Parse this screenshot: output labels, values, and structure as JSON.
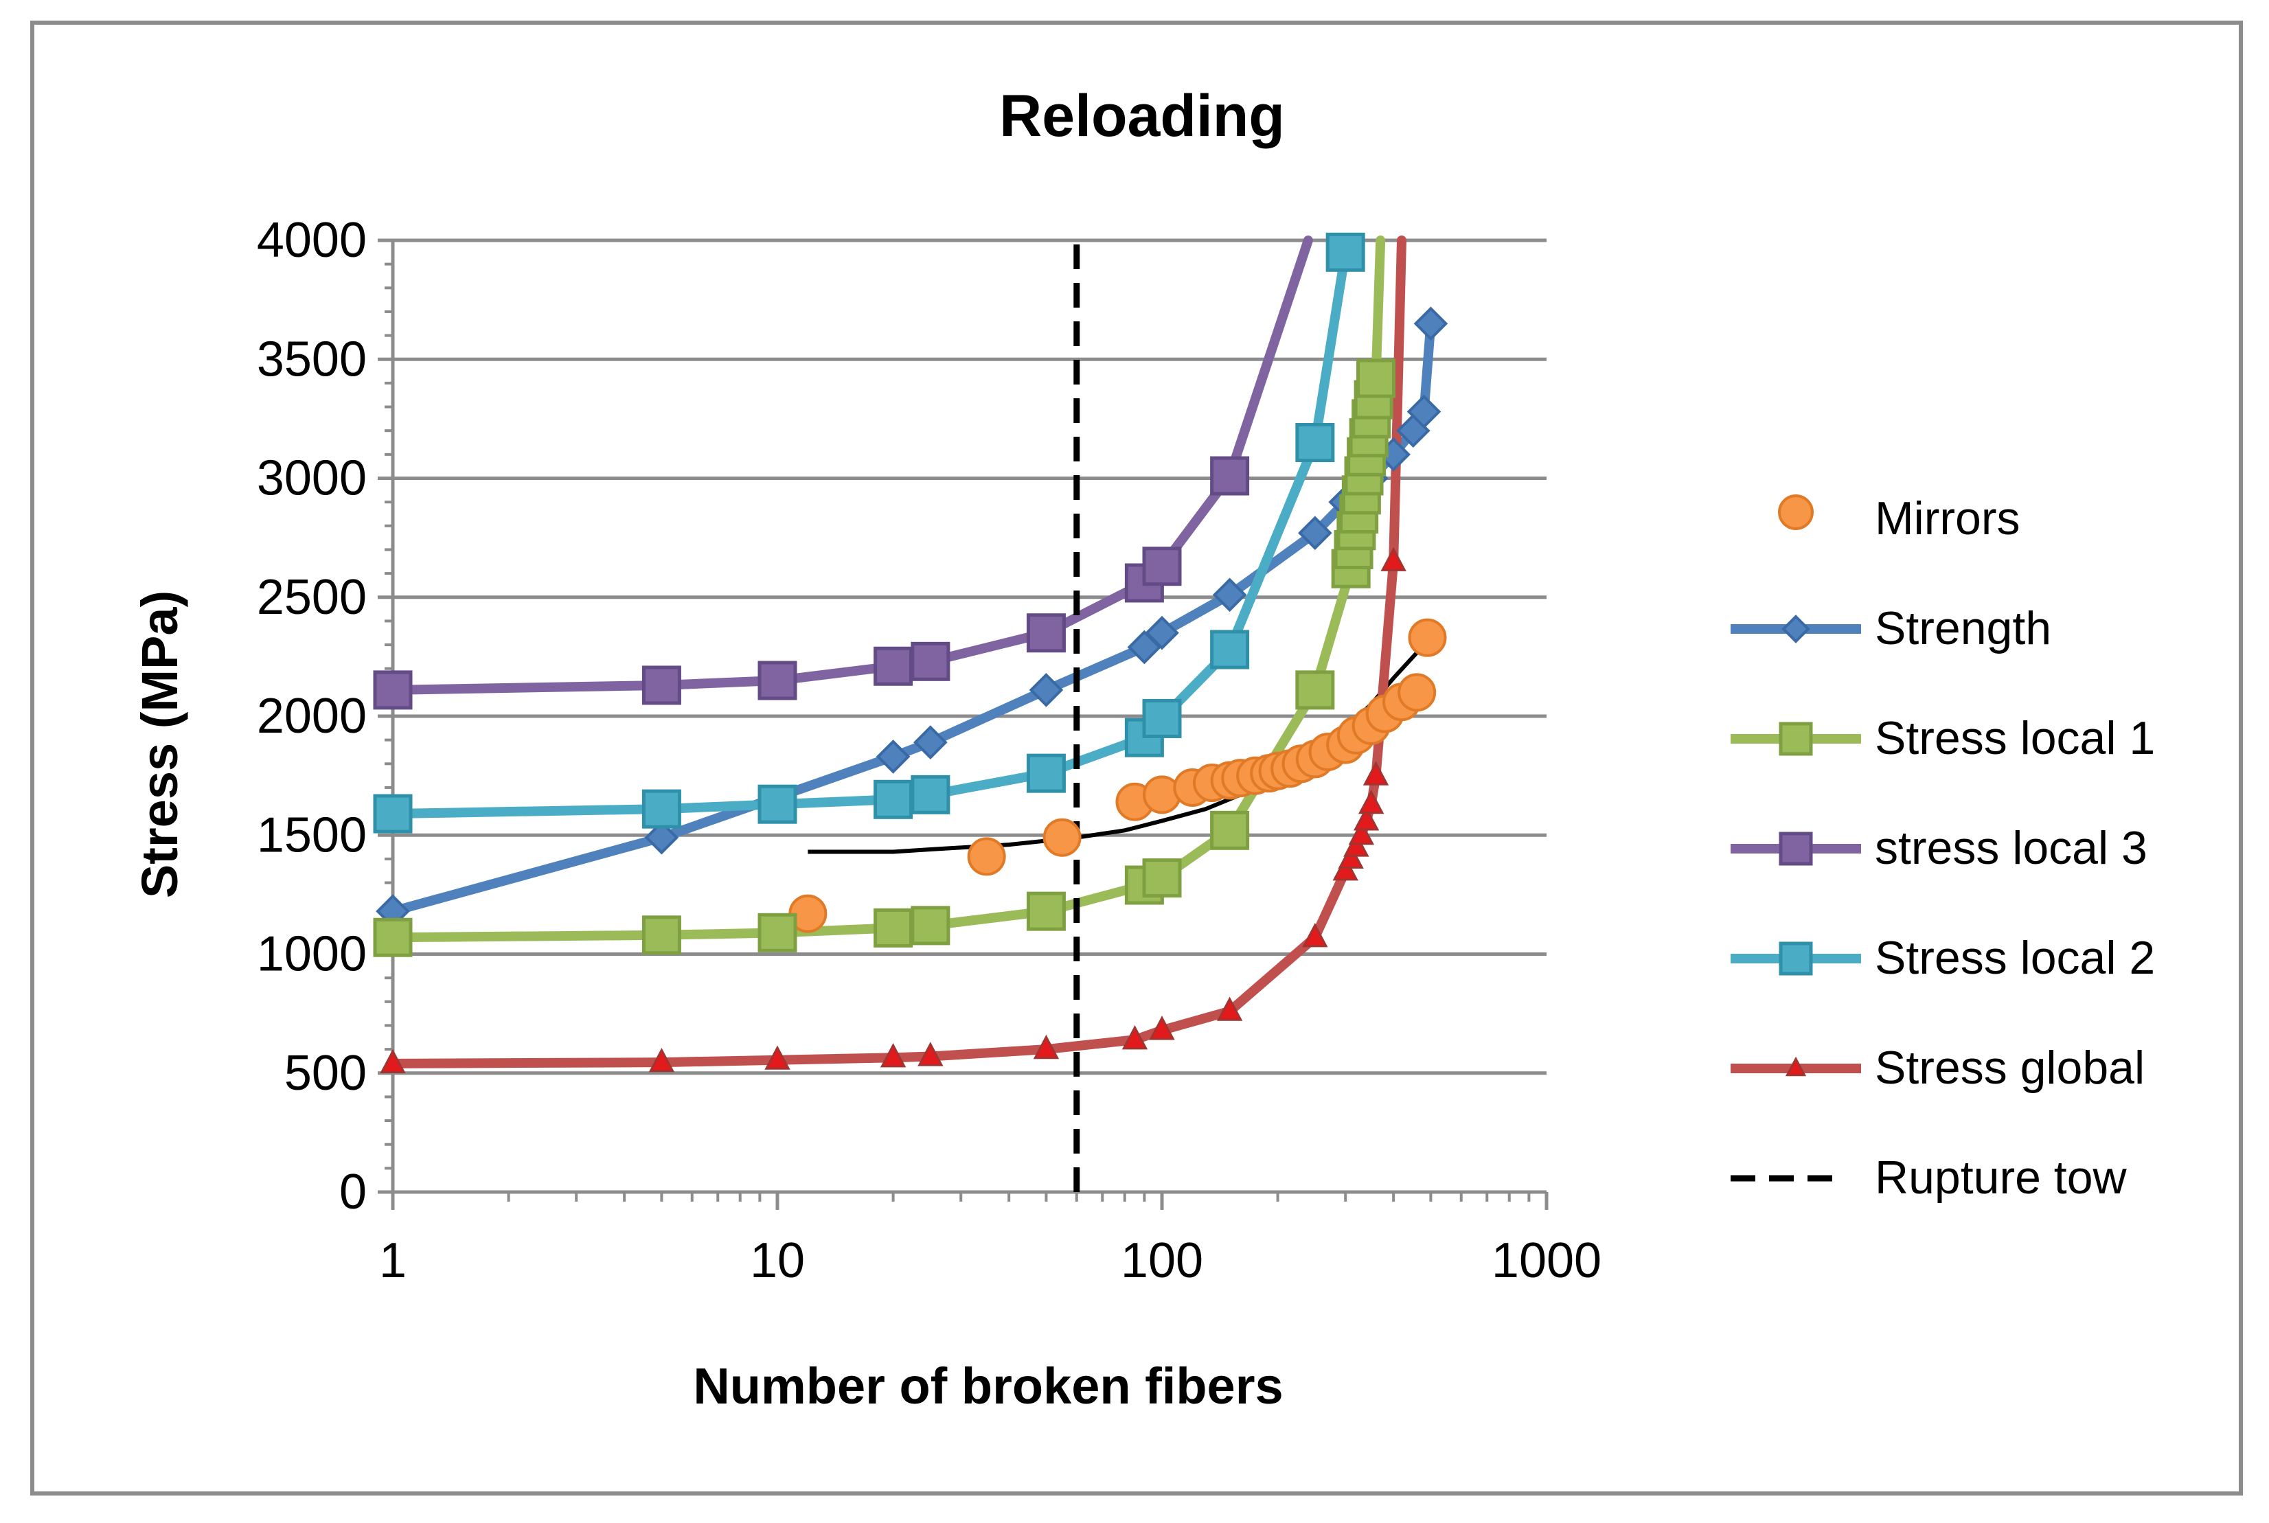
{
  "chart_data": {
    "type": "scatter",
    "title": "Reloading",
    "xlabel": "Number of broken fibers",
    "ylabel": "Stress (MPa)",
    "xscale": "log",
    "xlim": [
      1,
      1000
    ],
    "ylim": [
      0,
      4000
    ],
    "x_ticks": [
      1,
      10,
      100,
      1000
    ],
    "x_tick_labels": [
      "1",
      "10",
      "100",
      "1000"
    ],
    "y_ticks": [
      0,
      500,
      1000,
      1500,
      2000,
      2500,
      3000,
      3500,
      4000
    ],
    "y_tick_labels": [
      "0",
      "500",
      "1000",
      "1500",
      "2000",
      "2500",
      "3000",
      "3500",
      "4000"
    ],
    "grid": "horizontal major",
    "legend_position": "right",
    "series": [
      {
        "name": "Mirrors",
        "style": "markers",
        "marker": "circle",
        "color": "#F79646",
        "x": [
          12,
          35,
          55,
          85,
          100,
          120,
          135,
          150,
          160,
          175,
          190,
          200,
          215,
          230,
          250,
          270,
          300,
          320,
          350,
          380,
          420,
          460,
          490
        ],
        "y": [
          1170,
          1410,
          1490,
          1640,
          1670,
          1700,
          1720,
          1730,
          1740,
          1750,
          1760,
          1770,
          1780,
          1800,
          1820,
          1850,
          1880,
          1920,
          1960,
          2010,
          2060,
          2100,
          2330
        ]
      },
      {
        "name": "Strength",
        "style": "line-markers",
        "marker": "diamond",
        "color": "#4F81BD",
        "x": [
          1,
          5,
          20,
          25,
          50,
          90,
          100,
          150,
          250,
          300,
          350,
          400,
          450,
          480,
          500
        ],
        "y": [
          1180,
          1490,
          1830,
          1890,
          2110,
          2290,
          2350,
          2510,
          2770,
          2900,
          3000,
          3100,
          3200,
          3280,
          3650
        ]
      },
      {
        "name": "Stress local 1",
        "style": "line-markers",
        "marker": "square",
        "color": "#9BBB59",
        "x": [
          1,
          5,
          10,
          20,
          25,
          50,
          90,
          100,
          150,
          250,
          310,
          315,
          320,
          325,
          330,
          335,
          340,
          345,
          350,
          355,
          360,
          370
        ],
        "y": [
          1070,
          1080,
          1090,
          1110,
          1120,
          1180,
          1290,
          1320,
          1520,
          2110,
          2620,
          2700,
          2780,
          2850,
          2930,
          3010,
          3090,
          3170,
          3250,
          3330,
          3420,
          4000
        ]
      },
      {
        "name": "stress local 3",
        "style": "line-markers",
        "marker": "square",
        "color": "#8064A2",
        "x": [
          1,
          5,
          10,
          20,
          25,
          50,
          90,
          100,
          150,
          240
        ],
        "y": [
          2110,
          2130,
          2150,
          2210,
          2230,
          2350,
          2560,
          2630,
          3010,
          4000
        ]
      },
      {
        "name": "Stress local 2",
        "style": "line-markers",
        "marker": "square",
        "color": "#4BACC6",
        "x": [
          1,
          5,
          10,
          20,
          25,
          50,
          90,
          100,
          150,
          250,
          300
        ],
        "y": [
          1590,
          1610,
          1630,
          1650,
          1670,
          1760,
          1910,
          1990,
          2280,
          3150,
          3950
        ]
      },
      {
        "name": "Stress global",
        "style": "line-markers",
        "marker": "triangle",
        "color": "#C0504D",
        "x": [
          1,
          5,
          10,
          20,
          25,
          50,
          85,
          100,
          150,
          250,
          300,
          310,
          320,
          330,
          340,
          350,
          360,
          400,
          420
        ],
        "y": [
          540,
          545,
          555,
          565,
          570,
          600,
          640,
          680,
          760,
          1070,
          1350,
          1400,
          1450,
          1500,
          1560,
          1630,
          1750,
          2650,
          4000
        ]
      },
      {
        "name": "Rupture tow",
        "style": "dashed-line",
        "color": "#000000",
        "x": [
          60,
          60
        ],
        "y": [
          0,
          4000
        ]
      }
    ],
    "trend_line": {
      "color": "#000000",
      "x": [
        12,
        20,
        25,
        40,
        60,
        80,
        100,
        130,
        160,
        200,
        250,
        300,
        350,
        400,
        450,
        500
      ],
      "y": [
        1430,
        1430,
        1440,
        1460,
        1490,
        1520,
        1560,
        1610,
        1670,
        1750,
        1840,
        1950,
        2050,
        2160,
        2250,
        2330
      ]
    }
  }
}
